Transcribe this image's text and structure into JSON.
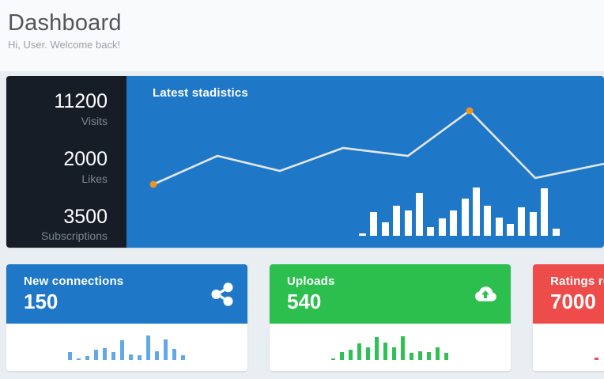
{
  "header": {
    "title": "Dashboard",
    "subtitle": "Hi, User. Welcome back!"
  },
  "stats_panel": {
    "stats": [
      {
        "value": "11200",
        "label": "Visits"
      },
      {
        "value": "2000",
        "label": "Likes"
      },
      {
        "value": "3500",
        "label": "Subscriptions"
      }
    ],
    "chart": {
      "title": "Latest stadistics",
      "type": "line+bar",
      "line_points": [
        [
          34,
          137
        ],
        [
          115,
          101
        ],
        [
          194,
          120
        ],
        [
          274,
          91
        ],
        [
          356,
          101
        ],
        [
          434,
          44
        ],
        [
          517,
          129
        ],
        [
          604,
          111
        ]
      ],
      "marker_indices": [
        0,
        5
      ],
      "bar_values": [
        3,
        30,
        17,
        38,
        32,
        54,
        11,
        22,
        32,
        47,
        61,
        38,
        23,
        15,
        36,
        30,
        60,
        9
      ],
      "colors": {
        "background": "#1f77c8",
        "side_panel": "#161d27",
        "line": "#e4e7ea",
        "marker": "#f0921e",
        "bars": "#ffffff"
      }
    }
  },
  "cards": [
    {
      "title": "New connections",
      "value": "150",
      "icon": "share-icon",
      "accent": "#1f77c8",
      "bar_color": "#63a8e6",
      "bar_values": [
        10,
        2,
        5,
        13,
        15,
        10,
        25,
        7,
        6,
        31,
        11,
        26,
        14,
        6
      ]
    },
    {
      "title": "Uploads",
      "value": "540",
      "icon": "cloud-upload-icon",
      "accent": "#2cbf4e",
      "bar_color": "#2fc155",
      "bar_values": [
        2,
        10,
        13,
        21,
        16,
        29,
        22,
        16,
        30,
        9,
        11,
        10,
        16,
        9
      ]
    },
    {
      "title": "Ratings received",
      "value": "7000",
      "icon": "none",
      "accent": "#ee4b4b",
      "bar_color": "#ee4b4b",
      "bar_values": [
        3
      ]
    }
  ]
}
